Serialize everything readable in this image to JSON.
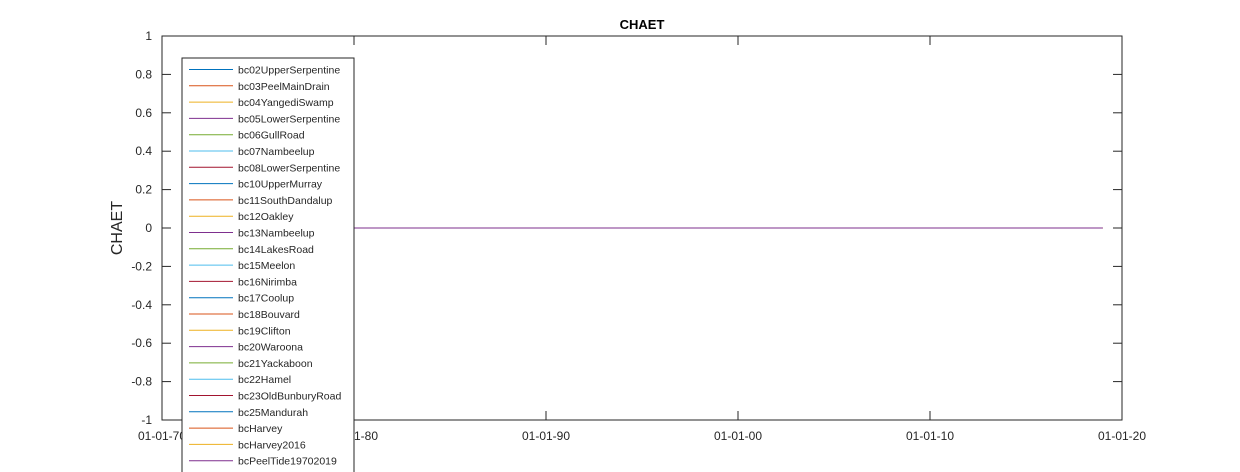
{
  "chart_data": {
    "type": "line",
    "title": "CHAET",
    "xlabel": "",
    "ylabel": "CHAET",
    "x_ticks": [
      "01-01-70",
      "01-01-80",
      "01-01-90",
      "01-01-00",
      "01-01-10",
      "01-01-20"
    ],
    "y_ticks": [
      "1",
      "0.8",
      "0.6",
      "0.4",
      "0.2",
      "0",
      "-0.2",
      "-0.4",
      "-0.6",
      "-0.8",
      "-1"
    ],
    "xlim": [
      "1970-01-01",
      "2020-01-01"
    ],
    "ylim": [
      -1,
      1
    ],
    "grid": false,
    "legend_position": "top-left",
    "series": [
      {
        "name": "bc02UpperSerpentine",
        "color": "#0072BD",
        "x": [
          "1980-01-01",
          "2019-01-01"
        ],
        "values": [
          0,
          0
        ]
      },
      {
        "name": "bc03PeelMainDrain",
        "color": "#D95319",
        "x": [
          "1980-01-01",
          "2019-01-01"
        ],
        "values": [
          0,
          0
        ]
      },
      {
        "name": "bc04YangediSwamp",
        "color": "#EDB120",
        "x": [
          "1980-01-01",
          "2019-01-01"
        ],
        "values": [
          0,
          0
        ]
      },
      {
        "name": "bc05LowerSerpentine",
        "color": "#7E2F8E",
        "x": [
          "1980-01-01",
          "2019-01-01"
        ],
        "values": [
          0,
          0
        ]
      },
      {
        "name": "bc06GullRoad",
        "color": "#77AC30",
        "x": [
          "1980-01-01",
          "2019-01-01"
        ],
        "values": [
          0,
          0
        ]
      },
      {
        "name": "bc07Nambeelup",
        "color": "#4DBEEE",
        "x": [
          "1980-01-01",
          "2019-01-01"
        ],
        "values": [
          0,
          0
        ]
      },
      {
        "name": "bc08LowerSerpentine",
        "color": "#A2142F",
        "x": [
          "1980-01-01",
          "2019-01-01"
        ],
        "values": [
          0,
          0
        ]
      },
      {
        "name": "bc10UpperMurray",
        "color": "#0072BD",
        "x": [
          "1980-01-01",
          "2019-01-01"
        ],
        "values": [
          0,
          0
        ]
      },
      {
        "name": "bc11SouthDandalup",
        "color": "#D95319",
        "x": [
          "1980-01-01",
          "2019-01-01"
        ],
        "values": [
          0,
          0
        ]
      },
      {
        "name": "bc12Oakley",
        "color": "#EDB120",
        "x": [
          "1980-01-01",
          "2019-01-01"
        ],
        "values": [
          0,
          0
        ]
      },
      {
        "name": "bc13Nambeelup",
        "color": "#7E2F8E",
        "x": [
          "1980-01-01",
          "2019-01-01"
        ],
        "values": [
          0,
          0
        ]
      },
      {
        "name": "bc14LakesRoad",
        "color": "#77AC30",
        "x": [
          "1980-01-01",
          "2019-01-01"
        ],
        "values": [
          0,
          0
        ]
      },
      {
        "name": "bc15Meelon",
        "color": "#4DBEEE",
        "x": [
          "1980-01-01",
          "2019-01-01"
        ],
        "values": [
          0,
          0
        ]
      },
      {
        "name": "bc16Nirimba",
        "color": "#A2142F",
        "x": [
          "1980-01-01",
          "2019-01-01"
        ],
        "values": [
          0,
          0
        ]
      },
      {
        "name": "bc17Coolup",
        "color": "#0072BD",
        "x": [
          "1980-01-01",
          "2019-01-01"
        ],
        "values": [
          0,
          0
        ]
      },
      {
        "name": "bc18Bouvard",
        "color": "#D95319",
        "x": [
          "1980-01-01",
          "2019-01-01"
        ],
        "values": [
          0,
          0
        ]
      },
      {
        "name": "bc19Clifton",
        "color": "#EDB120",
        "x": [
          "1980-01-01",
          "2019-01-01"
        ],
        "values": [
          0,
          0
        ]
      },
      {
        "name": "bc20Waroona",
        "color": "#7E2F8E",
        "x": [
          "1980-01-01",
          "2019-01-01"
        ],
        "values": [
          0,
          0
        ]
      },
      {
        "name": "bc21Yackaboon",
        "color": "#77AC30",
        "x": [
          "1980-01-01",
          "2019-01-01"
        ],
        "values": [
          0,
          0
        ]
      },
      {
        "name": "bc22Hamel",
        "color": "#4DBEEE",
        "x": [
          "2015-01-01",
          "2019-01-01"
        ],
        "values": [
          0,
          0
        ]
      },
      {
        "name": "bc23OldBunburyRoad",
        "color": "#A2142F",
        "x": [
          "1980-01-01",
          "2019-01-01"
        ],
        "values": [
          0,
          0
        ]
      },
      {
        "name": "bc25Mandurah",
        "color": "#0072BD",
        "x": [
          "1980-01-01",
          "2019-01-01"
        ],
        "values": [
          0,
          0
        ]
      },
      {
        "name": "bcHarvey",
        "color": "#D95319",
        "x": [
          "1980-01-01",
          "2019-01-01"
        ],
        "values": [
          0,
          0
        ]
      },
      {
        "name": "bcHarvey2016",
        "color": "#EDB120",
        "x": [
          "1980-01-01",
          "2019-01-01"
        ],
        "values": [
          0,
          0
        ]
      },
      {
        "name": "bcPeelTide19702019",
        "color": "#7E2F8E",
        "x": [
          "1980-01-01",
          "2019-01-01"
        ],
        "values": [
          0,
          0
        ]
      }
    ]
  }
}
